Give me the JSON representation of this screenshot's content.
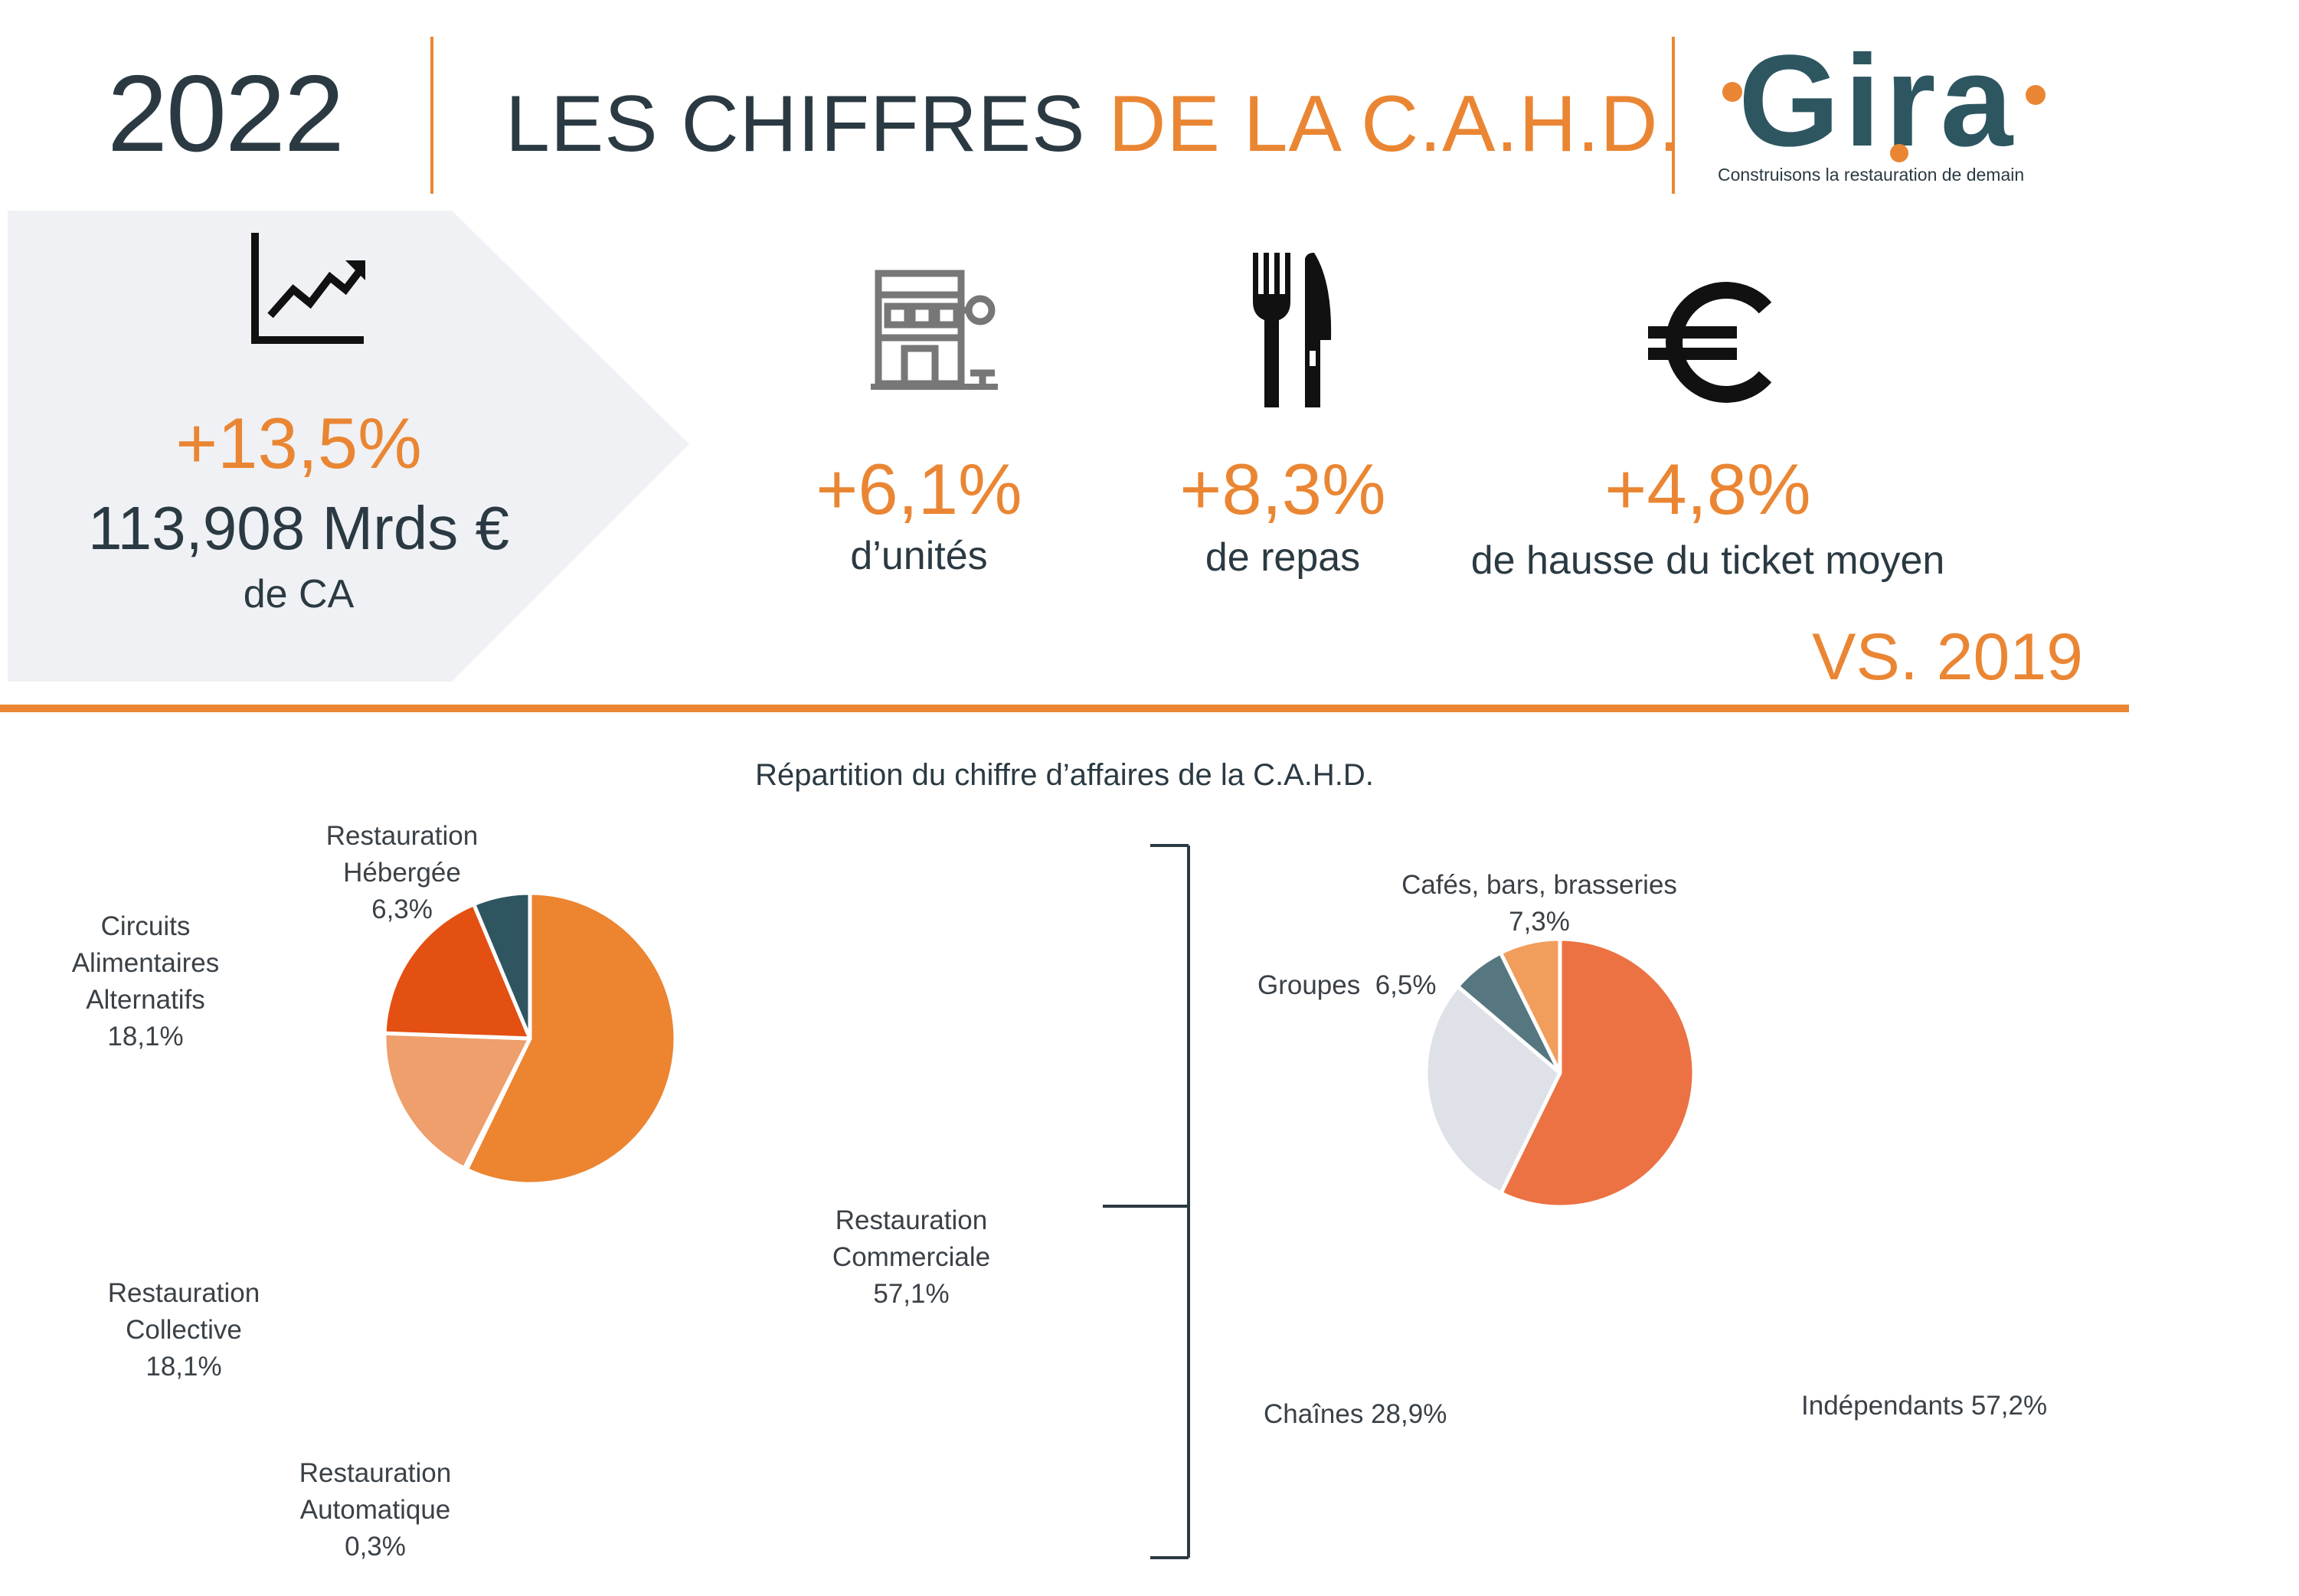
{
  "header": {
    "year": "2022",
    "title_part1": "LES CHIFFRES",
    "title_part2": "DE LA C.A.H.D.",
    "logo_word": "Gira",
    "logo_tagline": "Construisons la restauration de demain"
  },
  "kpis": {
    "ca": {
      "pct": "+13,5%",
      "value": "113,908 Mrds €",
      "label": "de CA"
    },
    "units": {
      "pct": "+6,1%",
      "label": "d’unités"
    },
    "meals": {
      "pct": "+8,3%",
      "label": "de repas"
    },
    "ticket": {
      "pct": "+4,8%",
      "label": "de hausse du ticket moyen"
    },
    "comparison": "VS. 2019"
  },
  "icons": {
    "growth": "growth-chart-icon",
    "storefront": "storefront-icon",
    "cutlery": "fork-knife-icon",
    "currency": "euro-icon"
  },
  "colors": {
    "orange": "#ea8633",
    "dark": "#2b3a42",
    "panel": "#eff1f4"
  },
  "chart_data": [
    {
      "type": "pie",
      "title": "Répartition du chiffre d’affaires de la C.A.H.D.",
      "slices": [
        {
          "label": "Restauration Commerciale",
          "lines": [
            "Restauration",
            "Commerciale"
          ],
          "value": 57.1,
          "value_label": "57,1%",
          "color": "#ec8430"
        },
        {
          "label": "Restauration Automatique",
          "lines": [
            "Restauration",
            "Automatique"
          ],
          "value": 0.3,
          "value_label": "0,3%",
          "color": "#ec8430"
        },
        {
          "label": "Restauration Collective",
          "lines": [
            "Restauration",
            "Collective"
          ],
          "value": 18.1,
          "value_label": "18,1%",
          "color": "#ee9f6b"
        },
        {
          "label": "Circuits Alimentaires Alternatifs",
          "lines": [
            "Circuits",
            "Alimentaires",
            "Alternatifs"
          ],
          "value": 18.1,
          "value_label": "18,1%",
          "color": "#e44f12"
        },
        {
          "label": "Restauration Hébergée",
          "lines": [
            "Restauration",
            "Hébergée"
          ],
          "value": 6.3,
          "value_label": "6,3%",
          "color": "#2f5660"
        }
      ]
    },
    {
      "type": "pie",
      "slices": [
        {
          "label": "Indépendants",
          "value": 57.2,
          "value_label": "Indépendants 57,2%",
          "color": "#ec7243"
        },
        {
          "label": "Chaînes",
          "value": 28.9,
          "value_label": "Chaînes 28,9%",
          "color": "#dfe1e8"
        },
        {
          "label": "Groupes",
          "value": 6.5,
          "value_label": "Groupes  6,5%",
          "color": "#567780"
        },
        {
          "label": "Cafés, bars, brasseries",
          "value": 7.3,
          "value_label": "7,3%",
          "color": "#f19d5c"
        }
      ]
    }
  ]
}
